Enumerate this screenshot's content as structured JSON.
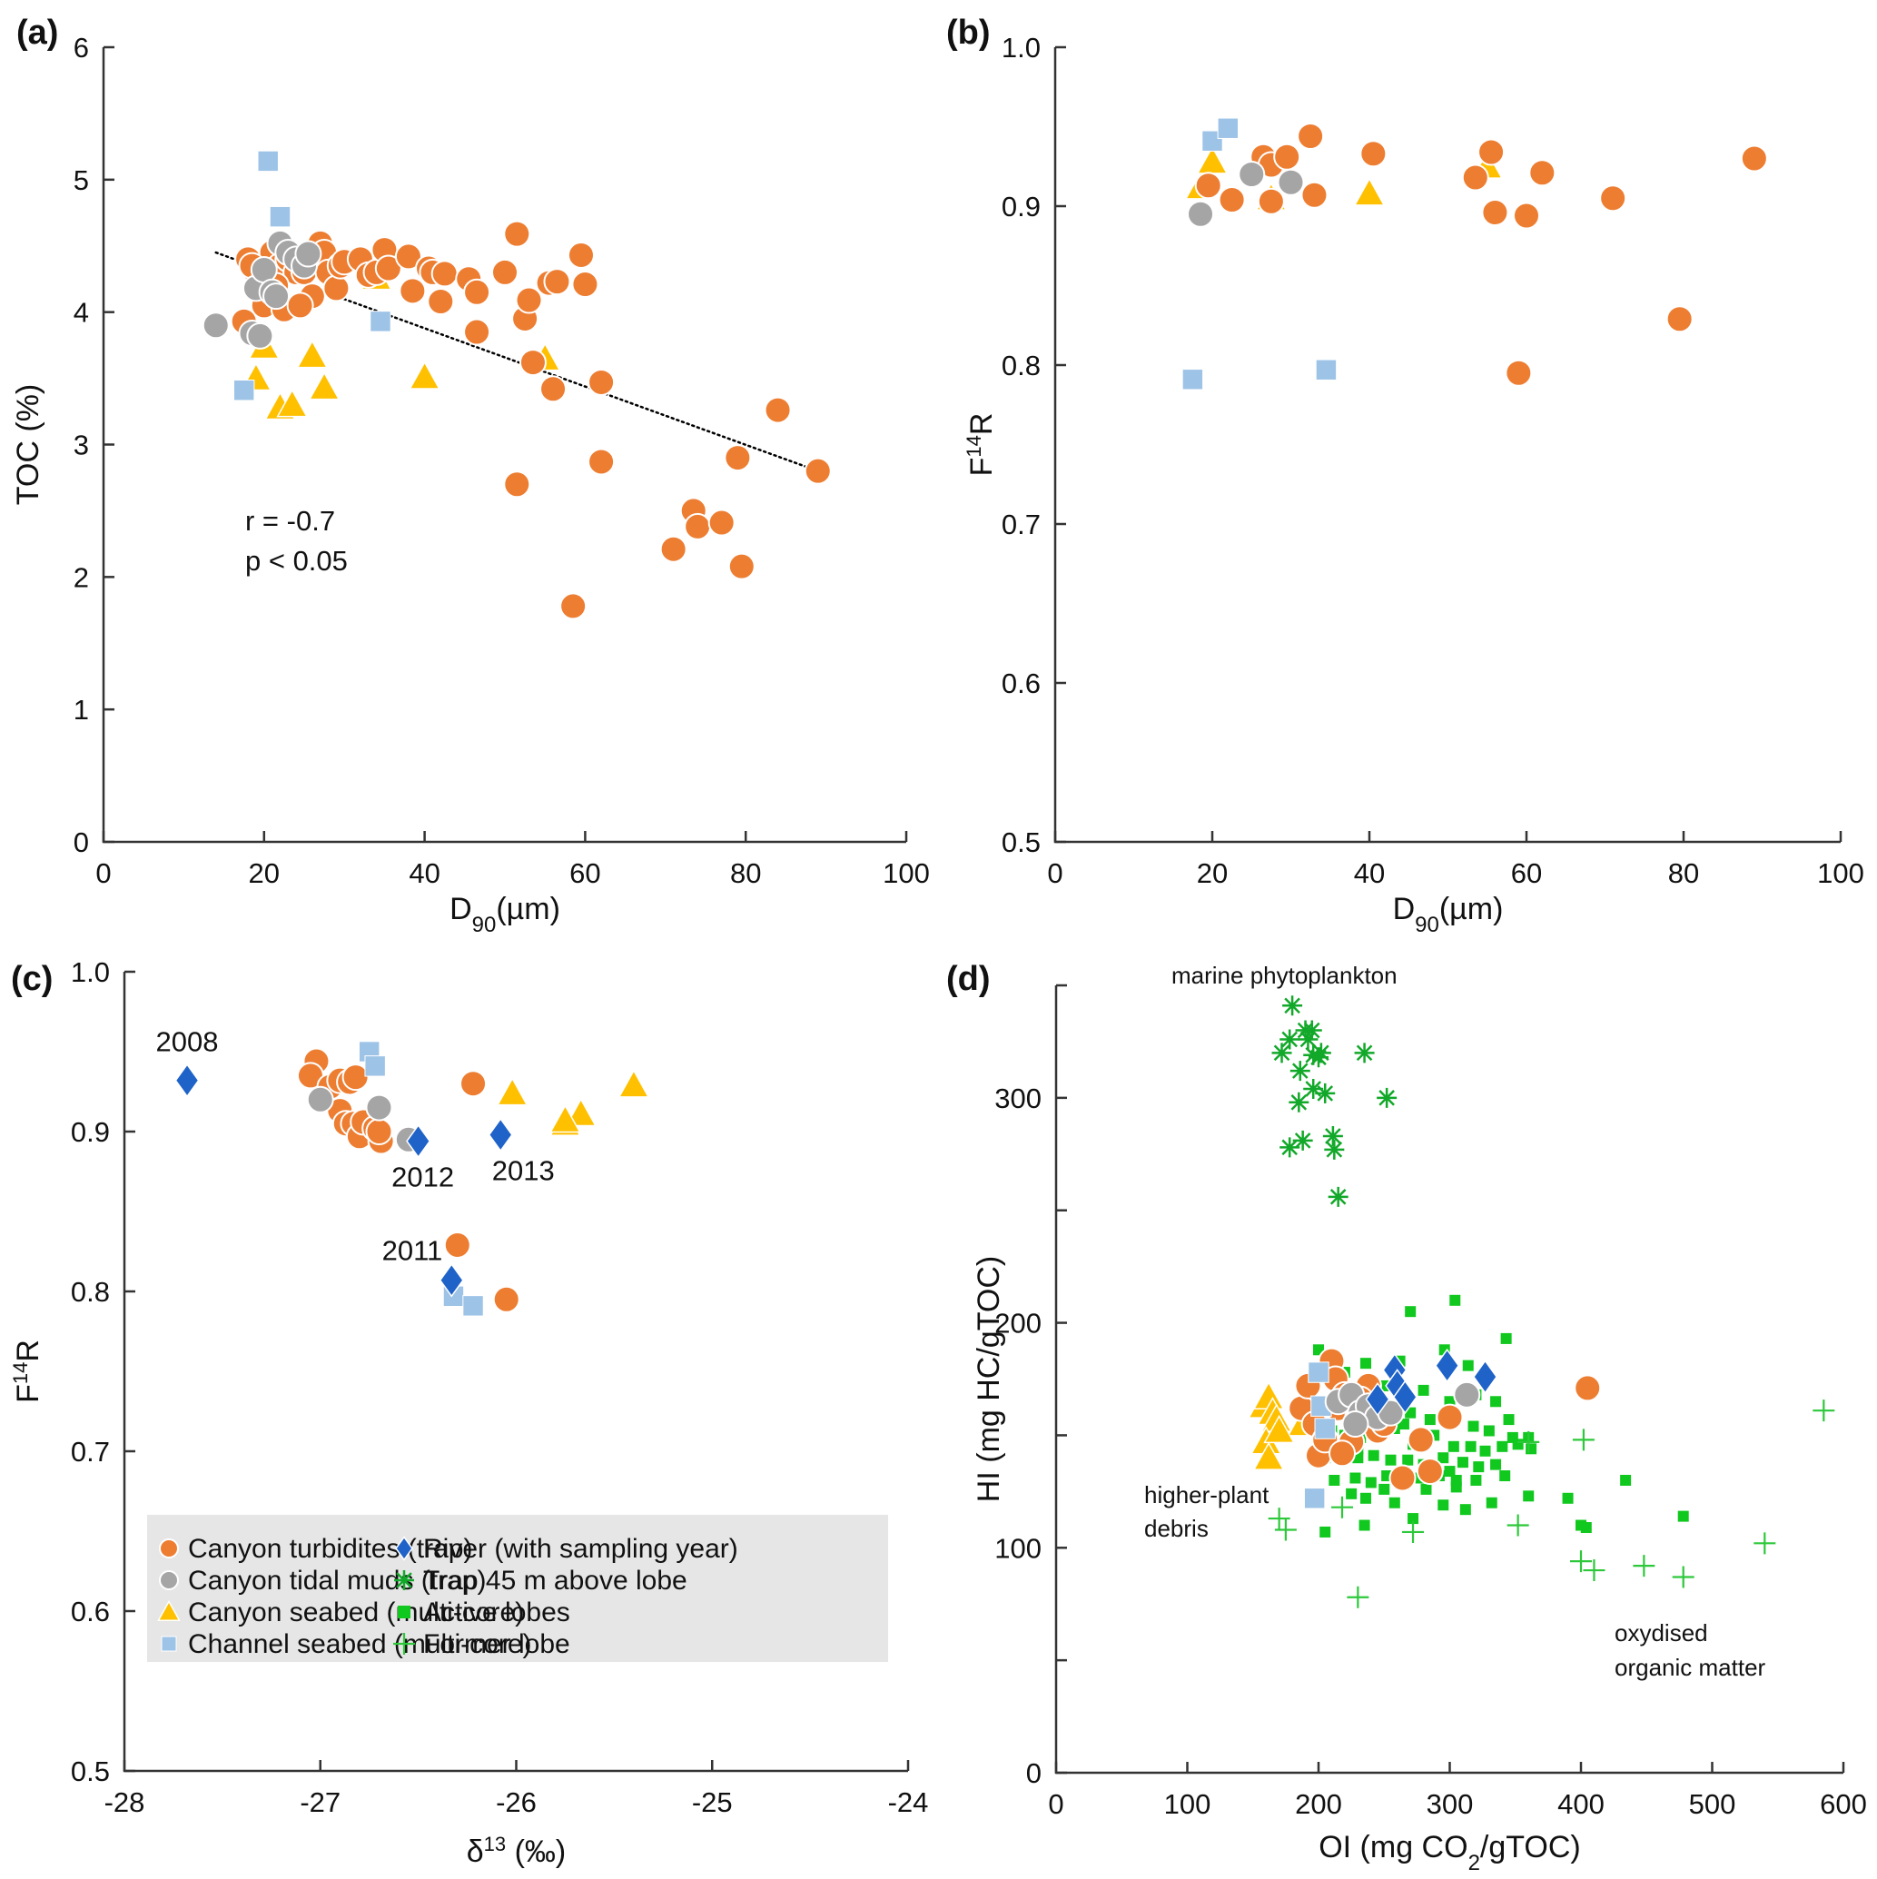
{
  "figure": {
    "legend": {
      "entries": [
        {
          "key": "turbidites",
          "label": "Canyon turbidites (trap)"
        },
        {
          "key": "tidal",
          "label": "Canyon tidal muds (trap)"
        },
        {
          "key": "seabed",
          "label": "Canyon seabed (multi-core)"
        },
        {
          "key": "channel",
          "label": "Channel seabed (multi-core)"
        },
        {
          "key": "river",
          "label": "River (with sampling year)"
        },
        {
          "key": "trap45",
          "label": "Trap 45 m above lobe"
        },
        {
          "key": "active",
          "label": "Active lobes"
        },
        {
          "key": "former",
          "label": "Former lobe"
        }
      ]
    },
    "series_styles": {
      "turbidites": {
        "marker": "circle",
        "color": "#ED7D31"
      },
      "tidal": {
        "marker": "circle",
        "color": "#A5A5A5"
      },
      "seabed": {
        "marker": "triangle",
        "color": "#FFC000"
      },
      "channel": {
        "marker": "square",
        "color": "#9DC3E6"
      },
      "river": {
        "marker": "diamond",
        "color": "#1F63C9"
      },
      "trap45": {
        "marker": "asterisk",
        "color": "#12A829"
      },
      "active": {
        "marker": "square-small",
        "color": "#10C81E"
      },
      "former": {
        "marker": "plus",
        "color": "#2DC83A"
      }
    }
  },
  "chart_data": [
    {
      "panel": "(a)",
      "type": "scatter",
      "xlabel": "D90(µm)",
      "ylabel": "TOC (%)",
      "xlim": [
        0,
        100
      ],
      "ylim": [
        0,
        6
      ],
      "xticks": [
        0,
        20,
        40,
        60,
        80,
        100
      ],
      "yticks": [
        0,
        1,
        2,
        3,
        4,
        5,
        6
      ],
      "annotations": [
        "r = -0.7",
        "p < 0.05"
      ],
      "trendline": {
        "style": "dotted",
        "x": [
          14,
          89
        ],
        "y": [
          4.45,
          2.8
        ]
      },
      "series": [
        {
          "name": "Canyon turbidites (trap)",
          "key": "turbidites",
          "x": [
            17.5,
            18,
            19,
            19.5,
            20,
            21,
            22,
            22.5,
            23,
            24,
            25,
            25.5,
            26,
            27,
            27.5,
            28,
            29,
            29.5,
            30,
            32,
            33,
            34,
            35,
            35.5,
            38,
            38.5,
            40.5,
            41,
            42,
            42.5,
            45.5,
            46.5,
            46.5,
            50,
            51.5,
            51.5,
            52.5,
            53,
            53.5,
            55.5,
            56,
            56.5,
            58.5,
            59.5,
            60,
            62,
            62,
            71,
            73.5,
            74,
            77,
            79,
            79.5,
            84,
            89,
            18.5,
            21.5,
            24.5
          ],
          "y": [
            3.93,
            4.4,
            4.3,
            4.15,
            4.05,
            4.45,
            4.35,
            4.02,
            4.4,
            4.3,
            4.3,
            4.38,
            4.12,
            4.52,
            4.45,
            4.3,
            4.18,
            4.35,
            4.38,
            4.4,
            4.28,
            4.3,
            4.47,
            4.33,
            4.42,
            4.16,
            4.33,
            4.3,
            4.08,
            4.29,
            4.25,
            3.85,
            4.15,
            4.3,
            4.59,
            2.7,
            3.95,
            4.09,
            3.62,
            4.22,
            3.42,
            4.23,
            1.78,
            4.43,
            4.21,
            3.47,
            2.87,
            2.21,
            2.5,
            2.38,
            2.41,
            2.9,
            2.08,
            3.26,
            2.8,
            4.35,
            4.2,
            4.05
          ]
        },
        {
          "name": "Canyon tidal muds (trap)",
          "key": "tidal",
          "x": [
            14,
            18.5,
            19,
            19.5,
            20,
            21,
            21.5,
            22,
            23,
            24,
            25,
            25.5
          ],
          "y": [
            3.9,
            3.84,
            4.18,
            3.82,
            4.32,
            4.15,
            4.12,
            4.52,
            4.45,
            4.4,
            4.35,
            4.44
          ]
        },
        {
          "name": "Canyon seabed (multi-core)",
          "key": "seabed",
          "x": [
            19,
            20,
            22,
            23.5,
            26,
            27.5,
            34,
            40,
            55
          ],
          "y": [
            3.5,
            3.74,
            3.28,
            3.3,
            3.67,
            3.43,
            4.26,
            3.51,
            3.65
          ]
        },
        {
          "name": "Channel seabed (multi-core)",
          "key": "channel",
          "x": [
            17.5,
            20.5,
            22,
            34.5
          ],
          "y": [
            3.41,
            5.14,
            4.72,
            3.93
          ]
        }
      ]
    },
    {
      "panel": "(b)",
      "type": "scatter",
      "xlabel": "D90(µm)",
      "ylabel": "F14R",
      "xlim": [
        0,
        100
      ],
      "ylim": [
        0.5,
        1.0
      ],
      "xticks": [
        0,
        20,
        40,
        60,
        80,
        100
      ],
      "yticks": [
        "0.5",
        "0.6",
        "0.7",
        "0.8",
        "0.9",
        "1.0"
      ],
      "series": [
        {
          "name": "Canyon turbidites (trap)",
          "key": "turbidites",
          "x": [
            19.5,
            22.5,
            26.5,
            27.5,
            27.5,
            29.5,
            32.5,
            33,
            40.5,
            53.5,
            55.5,
            56,
            59,
            60,
            62,
            71,
            79.5,
            89
          ],
          "y": [
            0.913,
            0.904,
            0.931,
            0.903,
            0.926,
            0.931,
            0.944,
            0.907,
            0.933,
            0.918,
            0.934,
            0.896,
            0.795,
            0.894,
            0.921,
            0.905,
            0.829,
            0.93
          ]
        },
        {
          "name": "Canyon tidal muds (trap)",
          "key": "tidal",
          "x": [
            18.5,
            25,
            30
          ],
          "y": [
            0.895,
            0.92,
            0.915
          ]
        },
        {
          "name": "Canyon seabed (multi-core)",
          "key": "seabed",
          "x": [
            18.5,
            20,
            27.5,
            40,
            55
          ],
          "y": [
            0.912,
            0.928,
            0.905,
            0.908,
            0.925
          ]
        },
        {
          "name": "Channel seabed (multi-core)",
          "key": "channel",
          "x": [
            17.5,
            20,
            22,
            34.5
          ],
          "y": [
            0.791,
            0.941,
            0.949,
            0.797
          ]
        }
      ]
    },
    {
      "panel": "(c)",
      "type": "scatter",
      "xlabel": "δ13C (‰)",
      "ylabel": "F14R",
      "xlim": [
        -28,
        -24
      ],
      "ylim": [
        0.5,
        1.0
      ],
      "xticks": [
        "-28",
        "-27",
        "-26",
        "-25",
        "-24"
      ],
      "yticks": [
        "0.5",
        "0.6",
        "0.7",
        "0.8",
        "0.9",
        "1.0"
      ],
      "series": [
        {
          "name": "Canyon turbidites (trap)",
          "key": "turbidites",
          "x": [
            -27.02,
            -27.05,
            -26.95,
            -26.9,
            -26.85,
            -26.82,
            -26.9,
            -26.87,
            -26.83,
            -26.8,
            -26.78,
            -26.72,
            -26.69,
            -26.7,
            -26.22,
            -26.3,
            -26.05
          ],
          "y": [
            0.944,
            0.935,
            0.928,
            0.932,
            0.931,
            0.934,
            0.913,
            0.905,
            0.905,
            0.897,
            0.906,
            0.902,
            0.894,
            0.9,
            0.93,
            0.829,
            0.795
          ]
        },
        {
          "name": "Canyon tidal muds (trap)",
          "key": "tidal",
          "x": [
            -27.0,
            -26.7,
            -26.55
          ],
          "y": [
            0.92,
            0.915,
            0.895
          ]
        },
        {
          "name": "Canyon seabed (multi-core)",
          "key": "seabed",
          "x": [
            -26.02,
            -25.75,
            -25.67,
            -25.4,
            -25.75
          ],
          "y": [
            0.924,
            0.905,
            0.911,
            0.929,
            0.907
          ]
        },
        {
          "name": "Channel seabed (multi-core)",
          "key": "channel",
          "x": [
            -26.75,
            -26.72,
            -26.32,
            -26.22
          ],
          "y": [
            0.95,
            0.941,
            0.797,
            0.791
          ]
        },
        {
          "name": "River (with sampling year)",
          "key": "river",
          "x": [
            -27.68,
            -26.5,
            -26.08,
            -26.33
          ],
          "y": [
            0.932,
            0.894,
            0.898,
            0.807
          ],
          "labels": [
            "2008",
            "2012",
            "2013",
            "2011"
          ]
        }
      ]
    },
    {
      "panel": "(d)",
      "type": "scatter",
      "xlabel": "OI (mg CO2/gTOC)",
      "ylabel": "HI (mg HC/gTOC)",
      "xlim": [
        0,
        600
      ],
      "ylim": [
        0,
        350
      ],
      "xticks": [
        0,
        100,
        200,
        300,
        400,
        500,
        600
      ],
      "yticks": [
        0,
        100,
        200,
        300
      ],
      "minor_yticks": [
        50,
        150,
        250,
        350
      ],
      "annotations": [
        "marine phytoplankton",
        "higher-plant debris",
        "oxydised organic matter"
      ],
      "series": [
        {
          "name": "Canyon turbidites (trap)",
          "key": "turbidites",
          "x": [
            187,
            192,
            197,
            200,
            205,
            210,
            213,
            215,
            220,
            225,
            230,
            238,
            245,
            250,
            264,
            278,
            285,
            300,
            405,
            218,
            232
          ],
          "y": [
            162,
            172,
            155,
            141,
            148,
            183,
            175,
            162,
            168,
            147,
            158,
            172,
            152,
            155,
            131,
            148,
            134,
            158,
            171,
            142,
            166
          ]
        },
        {
          "name": "Canyon tidal muds (trap)",
          "key": "tidal",
          "x": [
            215,
            225,
            232,
            238,
            245,
            255,
            313,
            228
          ],
          "y": [
            165,
            168,
            160,
            163,
            158,
            160,
            168,
            155
          ]
        },
        {
          "name": "Canyon seabed (multi-core)",
          "key": "seabed",
          "x": [
            158,
            162,
            165,
            168,
            160,
            162,
            188,
            170
          ],
          "y": [
            163,
            167,
            160,
            157,
            147,
            140,
            155,
            152
          ]
        },
        {
          "name": "Channel seabed (multi-core)",
          "key": "channel",
          "x": [
            200,
            202,
            205,
            197
          ],
          "y": [
            178,
            163,
            153,
            122
          ]
        },
        {
          "name": "River (with sampling year)",
          "key": "river",
          "x": [
            245,
            258,
            260,
            266,
            298,
            327
          ],
          "y": [
            166,
            179,
            172,
            167,
            181,
            176
          ]
        },
        {
          "name": "Trap 45 m above lobe",
          "key": "trap45",
          "x": [
            180,
            190,
            192,
            195,
            196,
            178,
            200,
            202,
            172,
            235,
            186,
            196,
            205,
            252,
            185,
            211,
            212,
            188,
            178,
            215
          ],
          "y": [
            341,
            330,
            326,
            330,
            319,
            326,
            318,
            320,
            320,
            320,
            312,
            304,
            302,
            300,
            298,
            283,
            277,
            281,
            278,
            256
          ]
        },
        {
          "name": "Active lobes",
          "key": "active",
          "x": [
            270,
            304,
            343,
            200,
            220,
            236,
            200,
            262,
            296,
            314,
            236,
            250,
            280,
            300,
            320,
            335,
            345,
            360,
            212,
            225,
            240,
            255,
            270,
            285,
            300,
            318,
            330,
            348,
            210,
            220,
            232,
            245,
            258,
            272,
            288,
            303,
            316,
            327,
            340,
            352,
            362,
            205,
            218,
            230,
            242,
            255,
            268,
            280,
            295,
            310,
            322,
            335,
            212,
            228,
            240,
            252,
            265,
            278,
            292,
            305,
            320,
            342,
            225,
            236,
            258,
            272,
            295,
            312,
            332,
            205,
            235,
            390,
            400,
            404,
            434,
            478,
            360,
            250,
            282,
            300,
            230,
            245,
            265,
            285,
            305
          ],
          "y": [
            205,
            210,
            193,
            188,
            178,
            182,
            176,
            183,
            188,
            181,
            170,
            172,
            170,
            165,
            168,
            165,
            157,
            149,
            164,
            160,
            161,
            162,
            160,
            157,
            157,
            154,
            152,
            149,
            152,
            150,
            149,
            151,
            153,
            146,
            150,
            145,
            145,
            143,
            145,
            146,
            144,
            140,
            142,
            140,
            141,
            139,
            139,
            137,
            140,
            138,
            136,
            137,
            130,
            131,
            129,
            132,
            128,
            131,
            132,
            130,
            130,
            132,
            124,
            122,
            120,
            113,
            119,
            117,
            120,
            107,
            110,
            122,
            110,
            109,
            130,
            114,
            123,
            126,
            126,
            134,
            144,
            160,
            155,
            135,
            127
          ]
        },
        {
          "name": "Former lobe",
          "key": "former",
          "x": [
            585,
            402,
            352,
            540,
            448,
            410,
            400,
            478,
            230,
            170,
            175,
            218,
            272,
            360
          ],
          "y": [
            161,
            148,
            110,
            102,
            92,
            90,
            94,
            87,
            78,
            113,
            108,
            118,
            107,
            147
          ]
        }
      ]
    }
  ]
}
